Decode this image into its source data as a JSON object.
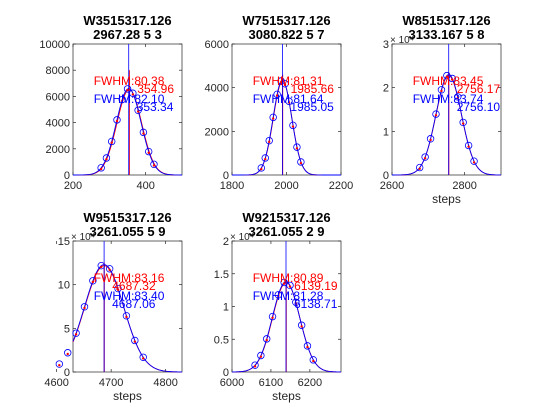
{
  "chart_data": [
    {
      "type": "scatter",
      "title_line1": "W3515317.126",
      "title_line2": "2967.28 5 3",
      "xlabel": "",
      "xlim": [
        200,
        500
      ],
      "ylim": [
        0,
        10000
      ],
      "xticks": [
        200,
        400
      ],
      "yticks": [
        0,
        2000,
        4000,
        6000,
        8000,
        10000
      ],
      "y_exponent": "",
      "center": 355,
      "amplitude": 6600,
      "sigma": 34,
      "red_peak_x": 354.96,
      "red_peak_y": 8000,
      "blue_peak_x": 353.34,
      "fwhm_red": "FWHM:80.38",
      "fwhm_blue": "FWHM:82.10",
      "peak_red_label": "354.96",
      "peak_blue_label": "353.34"
    },
    {
      "type": "scatter",
      "title_line1": "W7515317.126",
      "title_line2": "3080.822 5 7",
      "xlabel": "",
      "xlim": [
        1800,
        2200
      ],
      "ylim": [
        0,
        6000
      ],
      "xticks": [
        1800,
        2000,
        2200
      ],
      "yticks": [
        0,
        2000,
        4000,
        6000
      ],
      "y_exponent": "",
      "center": 1985,
      "amplitude": 4350,
      "sigma": 34,
      "red_peak_x": 1985.66,
      "red_peak_y": 4600,
      "blue_peak_x": 1985.05,
      "fwhm_red": "FWHM:81.31",
      "fwhm_blue": "FWHM:81.64",
      "peak_red_label": "1985.66",
      "peak_blue_label": "1985.05"
    },
    {
      "type": "scatter",
      "title_line1": "W8515317.126",
      "title_line2": "3133.167 5 8",
      "xlabel": "steps",
      "xlim": [
        2600,
        2900
      ],
      "ylim": [
        0,
        3
      ],
      "xticks": [
        2600,
        2800
      ],
      "yticks": [
        0,
        1,
        2,
        3
      ],
      "y_exponent": "× 10⁴",
      "center": 2756,
      "amplitude": 2.3,
      "sigma": 35,
      "red_peak_x": 2756.17,
      "red_peak_y": 2.35,
      "blue_peak_x": 2756.1,
      "fwhm_red": "FWHM:83.45",
      "fwhm_blue": "FWHM:83.74",
      "peak_red_label": "2756.17",
      "peak_blue_label": "2756.10"
    },
    {
      "type": "scatter",
      "title_line1": "W9515317.126",
      "title_line2": "3261.055 5 9",
      "xlabel": "steps",
      "xlim": [
        4630,
        4830
      ],
      "ylim": [
        0,
        15
      ],
      "xticks": [
        4600,
        4700,
        4800
      ],
      "yticks": [
        0,
        5,
        10,
        15
      ],
      "y_exponent": "× 10⁴",
      "center": 4687,
      "amplitude": 12.3,
      "sigma": 36,
      "red_peak_x": 4687.32,
      "red_peak_y": 12.5,
      "blue_peak_x": 4687.06,
      "fwhm_red": "FWHM:83.16",
      "fwhm_blue": "FWHM:83.40",
      "peak_red_label": "4687.32",
      "peak_blue_label": "4687.06"
    },
    {
      "type": "scatter",
      "title_line1": "W9215317.126",
      "title_line2": "3261.055 2 9",
      "xlabel": "steps",
      "xlim": [
        6000,
        6280
      ],
      "ylim": [
        0,
        2
      ],
      "xticks": [
        6000,
        6100,
        6200
      ],
      "yticks": [
        0,
        0.5,
        1,
        1.5,
        2
      ],
      "y_exponent": "× 10⁴",
      "center": 6139,
      "amplitude": 1.38,
      "sigma": 35,
      "red_peak_x": 6139.19,
      "red_peak_y": 1.4,
      "blue_peak_x": 6138.71,
      "fwhm_red": "FWHM:80.89",
      "fwhm_blue": "FWHM:81.28",
      "peak_red_label": "6139.19",
      "peak_blue_label": "6138.71"
    }
  ]
}
